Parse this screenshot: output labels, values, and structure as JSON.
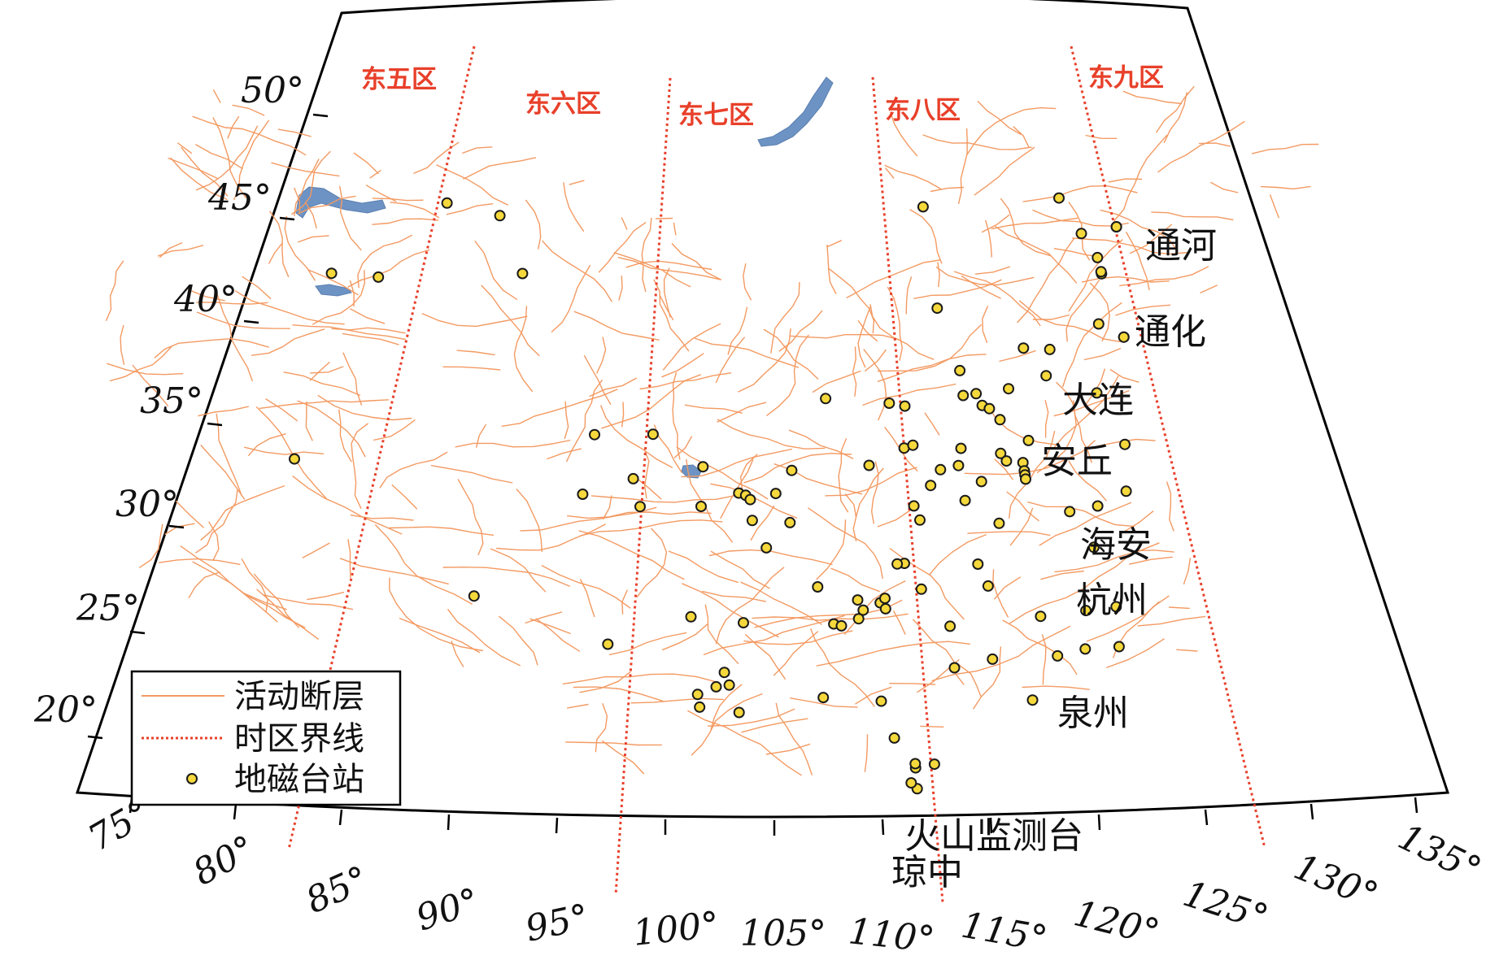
{
  "colors": {
    "fault": "#f39a62",
    "timezone": "#e8402a",
    "station_fill": "#f5d83c",
    "station_stroke": "#1a1a1a",
    "water": "#6d93c4",
    "frame": "#000000"
  },
  "time_zones": [
    "东五区",
    "东六区",
    "东七区",
    "东八区",
    "东九区"
  ],
  "latitude_labels": [
    "20°",
    "25°",
    "30°",
    "35°",
    "40°",
    "45°",
    "50°"
  ],
  "longitude_labels": [
    "75°",
    "80°",
    "85°",
    "90°",
    "95°",
    "100°",
    "105°",
    "110°",
    "115°",
    "120°",
    "125°",
    "130°",
    "135°"
  ],
  "legend": {
    "fault": "活动断层",
    "timezone": "时区界线",
    "station": "地磁台站"
  },
  "city_labels": [
    "通河",
    "通化",
    "大连",
    "安丘",
    "海安",
    "杭州",
    "泉州",
    "火山监测台",
    "琼中"
  ],
  "stations": [
    {
      "lon": 88.0,
      "lat": 43.8
    },
    {
      "lon": 90.8,
      "lat": 43.8
    },
    {
      "lon": 92.5,
      "lat": 41.3
    },
    {
      "lon": 85.7,
      "lat": 39.5
    },
    {
      "lon": 83.5,
      "lat": 39.0
    },
    {
      "lon": 84.5,
      "lat": 30.0
    },
    {
      "lon": 93.0,
      "lat": 25.7
    },
    {
      "lon": 97.0,
      "lat": 34.2
    },
    {
      "lon": 99.6,
      "lat": 34.5
    },
    {
      "lon": 96.8,
      "lat": 31.3
    },
    {
      "lon": 98.9,
      "lat": 32.3
    },
    {
      "lon": 99.3,
      "lat": 31.0
    },
    {
      "lon": 101.9,
      "lat": 33.1
    },
    {
      "lon": 101.9,
      "lat": 31.2
    },
    {
      "lon": 103.5,
      "lat": 31.9
    },
    {
      "lon": 103.8,
      "lat": 31.8
    },
    {
      "lon": 104.0,
      "lat": 31.6
    },
    {
      "lon": 104.1,
      "lat": 30.6
    },
    {
      "lon": 105.1,
      "lat": 31.9
    },
    {
      "lon": 105.8,
      "lat": 33.0
    },
    {
      "lon": 105.7,
      "lat": 30.5
    },
    {
      "lon": 104.7,
      "lat": 29.3
    },
    {
      "lon": 107.4,
      "lat": 36.4
    },
    {
      "lon": 106.8,
      "lat": 27.4
    },
    {
      "lon": 109.2,
      "lat": 33.1
    },
    {
      "lon": 110.3,
      "lat": 36.0
    },
    {
      "lon": 111.0,
      "lat": 35.8
    },
    {
      "lon": 112.9,
      "lat": 45.2
    },
    {
      "lon": 113.0,
      "lat": 40.3
    },
    {
      "lon": 113.7,
      "lat": 37.2
    },
    {
      "lon": 113.7,
      "lat": 36.0
    },
    {
      "lon": 114.3,
      "lat": 36.0
    },
    {
      "lon": 114.5,
      "lat": 35.4
    },
    {
      "lon": 114.8,
      "lat": 35.2
    },
    {
      "lon": 115.2,
      "lat": 34.6
    },
    {
      "lon": 115.8,
      "lat": 36.0
    },
    {
      "lon": 116.8,
      "lat": 37.8
    },
    {
      "lon": 118.0,
      "lat": 37.5
    },
    {
      "lon": 117.6,
      "lat": 36.3
    },
    {
      "lon": 116.3,
      "lat": 33.4
    },
    {
      "lon": 115.0,
      "lat": 33.0
    },
    {
      "lon": 115.2,
      "lat": 32.6
    },
    {
      "lon": 115.9,
      "lat": 32.4
    },
    {
      "lon": 115.9,
      "lat": 32.0
    },
    {
      "lon": 115.9,
      "lat": 31.8
    },
    {
      "lon": 115.9,
      "lat": 31.6
    },
    {
      "lon": 114.5,
      "lat": 29.7
    },
    {
      "lon": 117.5,
      "lat": 29.7
    },
    {
      "lon": 118.7,
      "lat": 29.7
    },
    {
      "lon": 118.2,
      "lat": 27.8
    },
    {
      "lon": 113.3,
      "lat": 33.5
    },
    {
      "lon": 113.1,
      "lat": 32.7
    },
    {
      "lon": 112.3,
      "lat": 32.6
    },
    {
      "lon": 113.2,
      "lat": 31.0
    },
    {
      "lon": 114.0,
      "lat": 31.8
    },
    {
      "lon": 110.8,
      "lat": 33.8
    },
    {
      "lon": 111.2,
      "lat": 33.9
    },
    {
      "lon": 111.8,
      "lat": 31.9
    },
    {
      "lon": 111.0,
      "lat": 31.0
    },
    {
      "lon": 111.2,
      "lat": 30.3
    },
    {
      "lon": 110.4,
      "lat": 28.3
    },
    {
      "lon": 110.1,
      "lat": 28.3
    },
    {
      "lon": 113.4,
      "lat": 27.9
    },
    {
      "lon": 111.0,
      "lat": 27.0
    },
    {
      "lon": 113.7,
      "lat": 26.8
    },
    {
      "lon": 108.4,
      "lat": 26.7
    },
    {
      "lon": 108.6,
      "lat": 26.2
    },
    {
      "lon": 109.3,
      "lat": 26.5
    },
    {
      "lon": 109.5,
      "lat": 26.7
    },
    {
      "lon": 107.4,
      "lat": 25.6
    },
    {
      "lon": 107.7,
      "lat": 25.5
    },
    {
      "lon": 108.4,
      "lat": 25.8
    },
    {
      "lon": 109.5,
      "lat": 26.2
    },
    {
      "lon": 112.0,
      "lat": 25.1
    },
    {
      "lon": 113.5,
      "lat": 23.3
    },
    {
      "lon": 112.0,
      "lat": 23.1
    },
    {
      "lon": 115.6,
      "lat": 25.0
    },
    {
      "lon": 117.4,
      "lat": 24.9
    },
    {
      "lon": 116.0,
      "lat": 23.0
    },
    {
      "lon": 117.1,
      "lat": 23.1
    },
    {
      "lon": 118.4,
      "lat": 22.9
    },
    {
      "lon": 114.8,
      "lat": 21.1
    },
    {
      "lon": 109.5,
      "lat": 20.0
    },
    {
      "lon": 110.9,
      "lat": 18.6
    },
    {
      "lon": 109.1,
      "lat": 21.8
    },
    {
      "lon": 106.9,
      "lat": 22.1
    },
    {
      "lon": 103.1,
      "lat": 23.3
    },
    {
      "lon": 102.1,
      "lat": 22.2
    },
    {
      "lon": 102.8,
      "lat": 22.6
    },
    {
      "lon": 103.3,
      "lat": 22.7
    },
    {
      "lon": 102.2,
      "lat": 21.6
    },
    {
      "lon": 103.7,
      "lat": 21.4
    },
    {
      "lon": 101.7,
      "lat": 25.9
    },
    {
      "lon": 103.8,
      "lat": 25.7
    },
    {
      "lon": 98.5,
      "lat": 24.3
    },
    {
      "lon": 120.0,
      "lat": 44.5
    },
    {
      "lon": 120.7,
      "lat": 42.6
    },
    {
      "lon": 121.2,
      "lat": 40.5
    },
    {
      "lon": 120.5,
      "lat": 38.2
    },
    {
      "lon": 121.5,
      "lat": 37.3
    },
    {
      "lon": 121.2,
      "lat": 41.3
    },
    {
      "lon": 122.5,
      "lat": 42.5
    },
    {
      "lon": 110.2,
      "lat": 17.5
    },
    {
      "lon": 110.2,
      "lat": 18.5
    }
  ],
  "labelled_stations": [
    {
      "lon": 122.5,
      "lat": 42.5
    },
    {
      "lon": 121.2,
      "lat": 40.6
    },
    {
      "lon": 121.5,
      "lat": 37.3
    },
    {
      "lon": 119.7,
      "lat": 35.0
    },
    {
      "lon": 120.4,
      "lat": 32.3
    },
    {
      "lon": 120.0,
      "lat": 30.1
    },
    {
      "lon": 118.6,
      "lat": 24.8
    },
    {
      "lon": 110.2,
      "lat": 18.7
    },
    {
      "lon": 110.0,
      "lat": 17.8
    }
  ]
}
